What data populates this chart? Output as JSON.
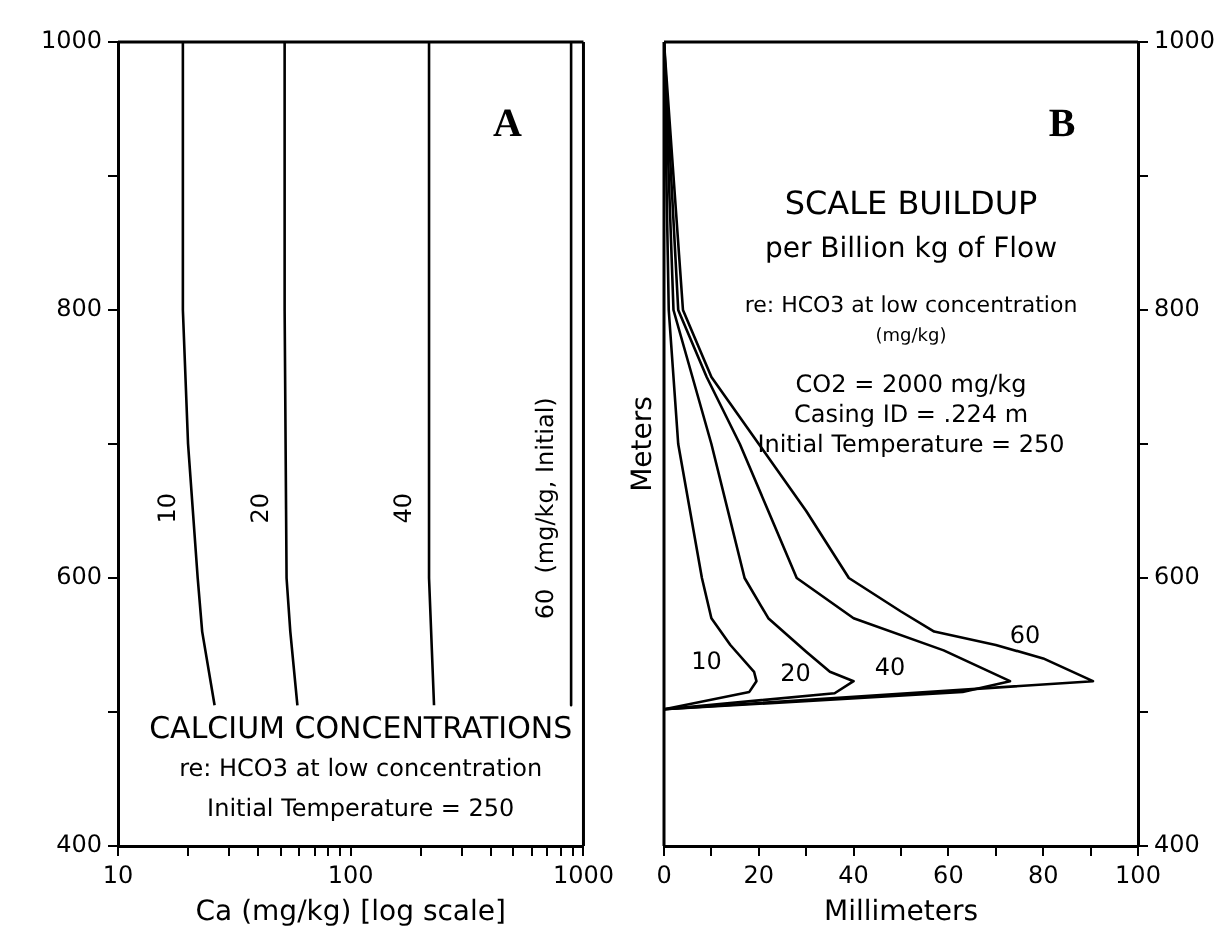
{
  "chart_data": [
    {
      "type": "line",
      "title": "A",
      "xlabel": "Ca (mg/kg) [log scale]",
      "log": "x",
      "legend": false,
      "grid": false,
      "xlim": [
        10,
        1000
      ],
      "xticks": [
        10,
        {
          "value": 20,
          "label": null
        },
        {
          "value": 30,
          "label": null
        },
        {
          "value": 40,
          "label": null
        },
        {
          "value": 50,
          "label": null
        },
        {
          "value": 60,
          "label": null
        },
        {
          "value": 70,
          "label": null
        },
        {
          "value": 80,
          "label": null
        },
        {
          "value": 90,
          "label": null
        },
        100,
        {
          "value": 200,
          "label": null
        },
        {
          "value": 300,
          "label": null
        },
        {
          "value": 400,
          "label": null
        },
        {
          "value": 500,
          "label": null
        },
        {
          "value": 600,
          "label": null
        },
        {
          "value": 700,
          "label": null
        },
        {
          "value": 800,
          "label": null
        },
        {
          "value": 900,
          "label": null
        },
        1000
      ],
      "ylim": [
        400,
        1000
      ],
      "yticks": [
        400,
        {
          "value": 500,
          "label": null
        },
        600,
        {
          "value": 700,
          "label": null
        },
        800,
        {
          "value": 900,
          "label": null
        },
        1000
      ],
      "series": [
        {
          "name": "10",
          "color": "#000000",
          "x": [
            19,
            19,
            20,
            22,
            23,
            26
          ],
          "values": [
            1000,
            800,
            700,
            600,
            560,
            505
          ]
        },
        {
          "name": "20",
          "color": "#000000",
          "x": [
            52,
            52,
            53,
            55,
            59
          ],
          "values": [
            1000,
            800,
            600,
            560,
            505
          ]
        },
        {
          "name": "40",
          "color": "#000000",
          "x": [
            217,
            217,
            228
          ],
          "values": [
            1000,
            600,
            505
          ]
        },
        {
          "name": "60  (mg/kg, Initial)",
          "color": "#000000",
          "x": [
            885,
            885
          ],
          "values": [
            1000,
            505
          ]
        }
      ],
      "annotations": [
        "CALCIUM CONCENTRATIONS",
        "re: HCO3 at low concentration",
        "Initial Temperature = 250"
      ]
    },
    {
      "type": "line",
      "title": "B",
      "xlabel": "Millimeters",
      "ylabel": "Meters",
      "legend": false,
      "grid": false,
      "xlim": [
        0,
        100
      ],
      "xticks": [
        0,
        {
          "value": 10,
          "label": null
        },
        20,
        {
          "value": 30,
          "label": null
        },
        40,
        {
          "value": 50,
          "label": null
        },
        60,
        {
          "value": 70,
          "label": null
        },
        80,
        {
          "value": 90,
          "label": null
        },
        100
      ],
      "y2lim": [
        400,
        1000
      ],
      "y2ticks": [
        400,
        {
          "value": 500,
          "label": null
        },
        600,
        {
          "value": 700,
          "label": null
        },
        800,
        {
          "value": 900,
          "label": null
        },
        1000
      ],
      "series": [
        {
          "name": "10",
          "axis": "y2",
          "color": "#000000",
          "x": [
            0,
            0.5,
            1,
            3,
            8,
            10,
            14,
            19,
            19.5,
            18,
            0
          ],
          "values": [
            1000,
            900,
            800,
            700,
            600,
            570,
            550,
            530,
            523,
            515,
            502
          ]
        },
        {
          "name": "20",
          "axis": "y2",
          "color": "#000000",
          "x": [
            0,
            1,
            2,
            10,
            17,
            22,
            30,
            35,
            40,
            36,
            0
          ],
          "values": [
            1000,
            900,
            800,
            700,
            600,
            570,
            545,
            530,
            523,
            514,
            502
          ]
        },
        {
          "name": "40",
          "axis": "y2",
          "color": "#000000",
          "x": [
            0,
            1.5,
            3,
            9,
            16,
            28,
            40,
            59,
            73,
            63,
            0
          ],
          "values": [
            1000,
            900,
            800,
            750,
            700,
            600,
            570,
            546,
            523,
            515,
            502
          ]
        },
        {
          "name": "60",
          "axis": "y2",
          "color": "#000000",
          "x": [
            0,
            2,
            4,
            10,
            20,
            30,
            39,
            50,
            57,
            70,
            80,
            90.5,
            0
          ],
          "values": [
            1000,
            900,
            800,
            750,
            700,
            650,
            600,
            575,
            560,
            550,
            540,
            523,
            502
          ]
        }
      ],
      "annotations": [
        "SCALE BUILDUP",
        "per Billion kg of Flow",
        "re: HCO3 at low concentration",
        "(mg/kg)",
        "CO2 = 2000 mg/kg",
        "Casing ID = .224 m",
        "Initial Temperature = 250"
      ]
    }
  ]
}
